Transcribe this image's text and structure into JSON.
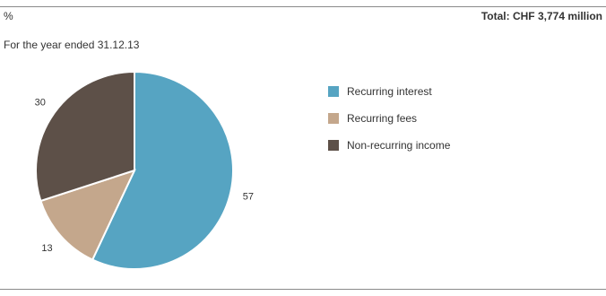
{
  "header": {
    "unit": "%",
    "total": "Total: CHF 3,774 million"
  },
  "subtitle": "For the year ended 31.12.13",
  "chart_data": {
    "type": "pie",
    "title": "",
    "series": [
      {
        "name": "Recurring interest",
        "value": 57,
        "label": "57",
        "color": "#56a4c2"
      },
      {
        "name": "Recurring fees",
        "value": 13,
        "label": "13",
        "color": "#c4a78c"
      },
      {
        "name": "Non-recurring income",
        "value": 30,
        "label": "30",
        "color": "#5d5048"
      }
    ],
    "start": "12 o'clock",
    "direction": "clockwise",
    "legend": "right"
  }
}
